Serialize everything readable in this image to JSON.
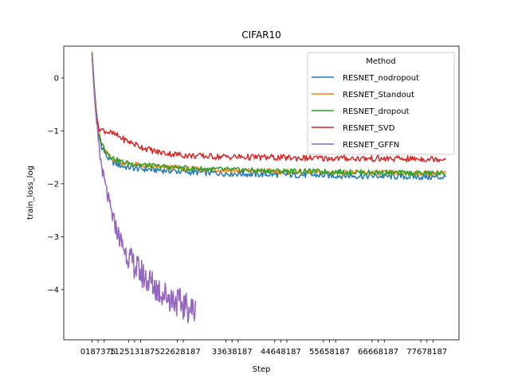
{
  "chart_data": {
    "type": "line",
    "title": "CIFAR10",
    "xlabel": "Step",
    "ylabel": "train_loss_log",
    "xlim": [
      -870,
      11300
    ],
    "ylim": [
      -4.95,
      0.6
    ],
    "yticks": [
      0,
      -1,
      -2,
      -3,
      -4
    ],
    "ytick_labels": [
      "0",
      "−1",
      "−2",
      "−3",
      "−4"
    ],
    "xtick_groups": [
      {
        "ticks": [
          0,
          187,
          375
        ],
        "label": "0187375"
      },
      {
        "ticks": [
          1125,
          1312,
          1500
        ],
        "label": "1125131875"
      },
      {
        "ticks": [
          2625,
          2812
        ],
        "label": "22628187"
      },
      {
        "ticks": [
          4125,
          4312,
          4500
        ],
        "label": "33638187"
      },
      {
        "ticks": [
          5625,
          5812,
          6000
        ],
        "label": "44648187"
      },
      {
        "ticks": [
          7125,
          7312,
          7500
        ],
        "label": "55658187"
      },
      {
        "ticks": [
          8625,
          8812,
          9000
        ],
        "label": "66668187"
      },
      {
        "ticks": [
          10125,
          10312,
          10500
        ],
        "label": "77678187"
      }
    ],
    "legend": {
      "title": "Method",
      "placement": "top-right"
    },
    "series": [
      {
        "name": "RESNET_nodropout",
        "color": "#1f77b4",
        "x": [
          0,
          60,
          120,
          187,
          300,
          450,
          600,
          800,
          1000,
          1500,
          2000,
          2500,
          3000,
          4000,
          5000,
          6000,
          7000,
          8000,
          9000,
          10000,
          10900
        ],
        "y": [
          0.45,
          -0.1,
          -0.6,
          -1.05,
          -1.3,
          -1.48,
          -1.58,
          -1.64,
          -1.68,
          -1.72,
          -1.74,
          -1.76,
          -1.78,
          -1.8,
          -1.82,
          -1.83,
          -1.84,
          -1.85,
          -1.86,
          -1.87,
          -1.88
        ]
      },
      {
        "name": "RESNET_Standout",
        "color": "#ff7f0e",
        "x": [
          0,
          60,
          120,
          187,
          300,
          450,
          600,
          800,
          1000,
          1500,
          2000,
          2500,
          3000,
          4000,
          5000,
          6000,
          7000,
          8000,
          9000,
          10000,
          10900
        ],
        "y": [
          0.5,
          -0.08,
          -0.55,
          -1.0,
          -1.25,
          -1.42,
          -1.52,
          -1.58,
          -1.61,
          -1.65,
          -1.68,
          -1.7,
          -1.72,
          -1.74,
          -1.76,
          -1.77,
          -1.78,
          -1.79,
          -1.79,
          -1.8,
          -1.8
        ]
      },
      {
        "name": "RESNET_dropout",
        "color": "#2ca02c",
        "x": [
          0,
          60,
          120,
          187,
          300,
          450,
          600,
          800,
          1000,
          1500,
          2000,
          2500,
          3000,
          4000,
          5000,
          6000,
          7000,
          8000,
          9000,
          10000,
          10900
        ],
        "y": [
          0.48,
          -0.08,
          -0.55,
          -1.0,
          -1.24,
          -1.4,
          -1.5,
          -1.56,
          -1.6,
          -1.64,
          -1.67,
          -1.69,
          -1.71,
          -1.73,
          -1.75,
          -1.76,
          -1.77,
          -1.78,
          -1.79,
          -1.8,
          -1.8
        ]
      },
      {
        "name": "RESNET_SVD",
        "color": "#d62728",
        "x": [
          0,
          60,
          120,
          187,
          300,
          500,
          800,
          1000,
          1500,
          2000,
          2500,
          3000,
          4000,
          5000,
          6000,
          7000,
          8000,
          9000,
          10000,
          10900
        ],
        "y": [
          0.45,
          -0.15,
          -0.6,
          -0.93,
          -0.98,
          -1.02,
          -1.1,
          -1.17,
          -1.3,
          -1.4,
          -1.44,
          -1.47,
          -1.49,
          -1.5,
          -1.51,
          -1.52,
          -1.52,
          -1.53,
          -1.53,
          -1.53
        ]
      },
      {
        "name": "RESNET_GFFN",
        "color": "#9467bd",
        "x": [
          0,
          60,
          120,
          187,
          250,
          350,
          450,
          600,
          800,
          1000,
          1200,
          1400,
          1600,
          1800,
          2000,
          2200,
          2400,
          2600,
          2800,
          3000,
          3187
        ],
        "y": [
          0.45,
          -0.2,
          -0.7,
          -1.15,
          -1.5,
          -1.85,
          -2.15,
          -2.55,
          -2.95,
          -3.25,
          -3.45,
          -3.62,
          -3.75,
          -3.87,
          -3.98,
          -4.08,
          -4.15,
          -4.22,
          -4.3,
          -4.36,
          -4.4
        ]
      }
    ]
  }
}
